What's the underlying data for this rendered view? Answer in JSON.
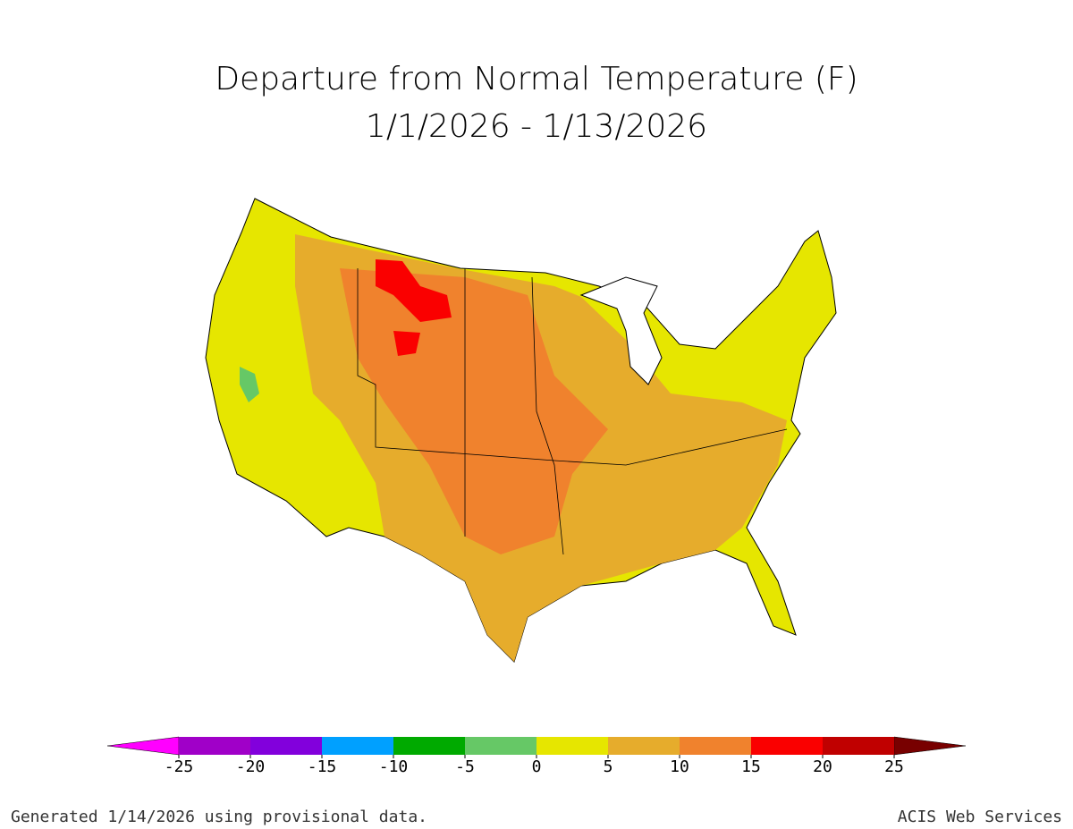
{
  "title": {
    "line1": "Departure from Normal Temperature (F)",
    "line2": "1/1/2026 - 1/13/2026"
  },
  "colorbar": {
    "ticks": [
      -25,
      -20,
      -15,
      -10,
      -5,
      0,
      5,
      10,
      15,
      20,
      25
    ],
    "below_color": "#ff00ff",
    "above_color": "#780000",
    "colors": [
      "#a000c8",
      "#8200dc",
      "#00a0ff",
      "#00aa00",
      "#66c866",
      "#e6e600",
      "#e6ac2c",
      "#f0822d",
      "#fa0000",
      "#c00000"
    ]
  },
  "footer": {
    "left": "Generated 1/14/2026 using provisional data.",
    "right": "ACIS Web Services"
  }
}
